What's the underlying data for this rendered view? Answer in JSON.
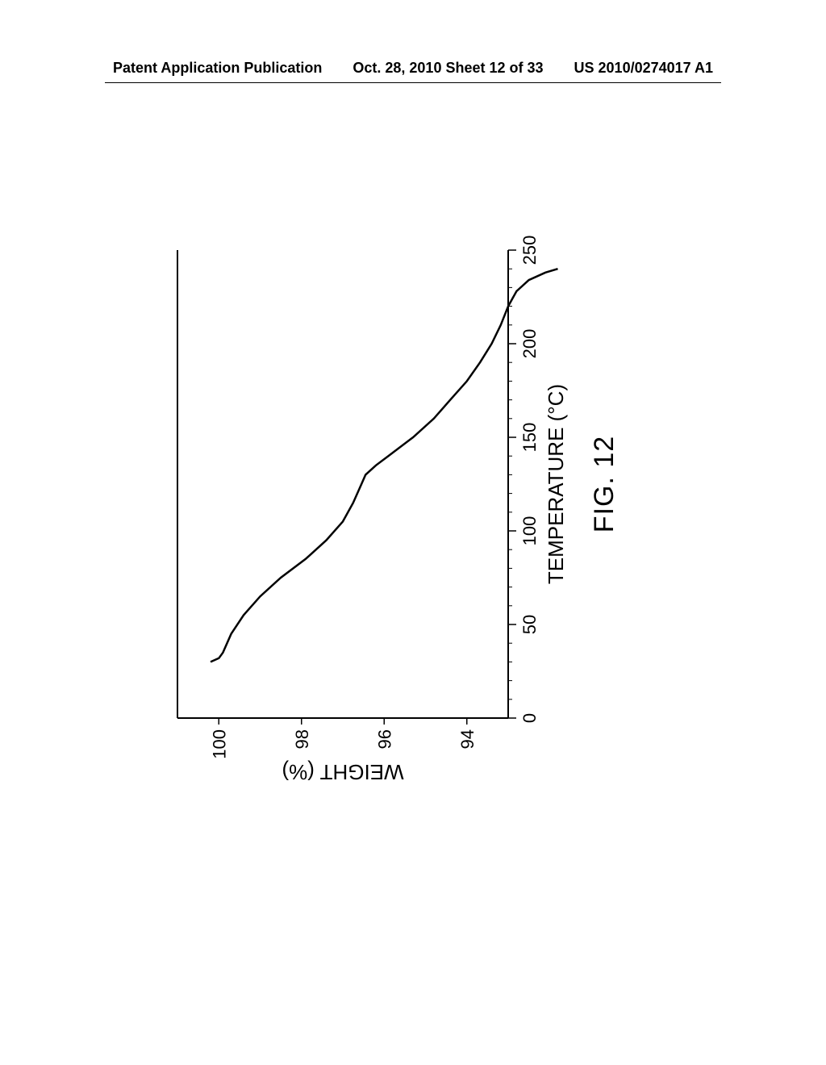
{
  "header": {
    "left": "Patent Application Publication",
    "center": "Oct. 28, 2010  Sheet 12 of 33",
    "right": "US 2010/0274017 A1"
  },
  "chart": {
    "type": "line",
    "x_axis": {
      "label": "TEMPERATURE (°C)",
      "min": 0,
      "max": 250,
      "tick_positions": [
        0,
        50,
        100,
        150,
        200,
        250
      ],
      "tick_labels": [
        "0",
        "50",
        "100",
        "150",
        "200",
        "250"
      ],
      "minor_tick_step": 10
    },
    "y_axis": {
      "label": "WEIGHT (%)",
      "min": 93,
      "max": 101,
      "tick_positions": [
        94,
        96,
        98,
        100
      ],
      "tick_labels": [
        "94",
        "96",
        "98",
        "100"
      ]
    },
    "curve_points": [
      [
        30,
        100.2
      ],
      [
        32,
        100.0
      ],
      [
        35,
        99.9
      ],
      [
        45,
        99.7
      ],
      [
        55,
        99.4
      ],
      [
        65,
        99.0
      ],
      [
        75,
        98.5
      ],
      [
        85,
        97.9
      ],
      [
        95,
        97.4
      ],
      [
        105,
        97.0
      ],
      [
        115,
        96.75
      ],
      [
        125,
        96.55
      ],
      [
        130,
        96.45
      ],
      [
        135,
        96.2
      ],
      [
        140,
        95.9
      ],
      [
        150,
        95.3
      ],
      [
        160,
        94.8
      ],
      [
        170,
        94.4
      ],
      [
        180,
        94.0
      ],
      [
        190,
        93.68
      ],
      [
        200,
        93.4
      ],
      [
        210,
        93.18
      ],
      [
        220,
        93.0
      ],
      [
        228,
        92.8
      ],
      [
        234,
        92.5
      ],
      [
        238,
        92.1
      ],
      [
        240,
        91.8
      ]
    ],
    "caption": "FIG. 12",
    "colors": {
      "stroke": "#000000",
      "background": "#ffffff"
    },
    "label_fontsize": 26,
    "tick_fontsize": 22,
    "caption_fontsize": 34,
    "line_width": 2.5
  }
}
